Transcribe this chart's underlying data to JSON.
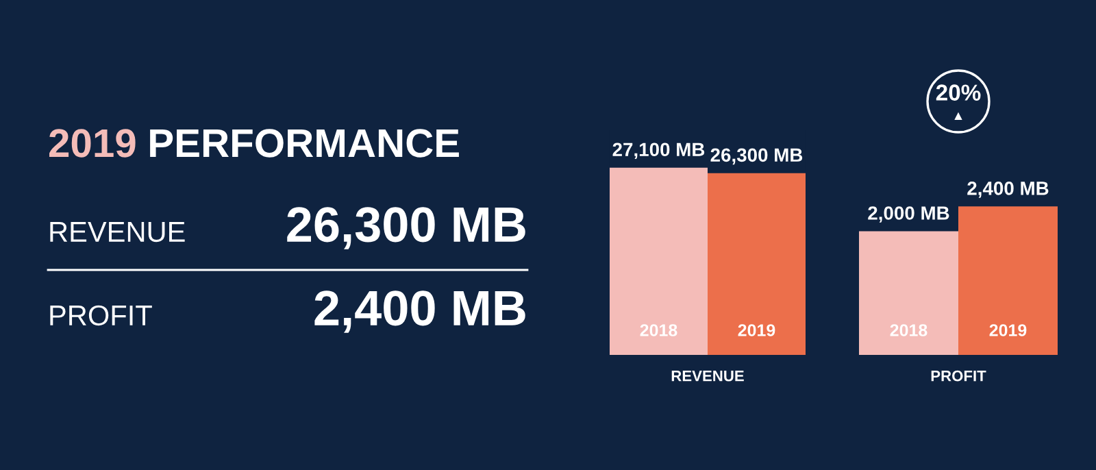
{
  "chart_data": [
    {
      "type": "other",
      "title": "2019 PERFORMANCE",
      "annotations": [
        "REVENUE",
        "26,300 MB",
        "PROFIT",
        "2,400 MB"
      ]
    },
    {
      "type": "bar",
      "xlabel": "REVENUE",
      "categories": [
        "2018",
        "2019"
      ],
      "values": [
        27100,
        26300
      ],
      "colors": [
        "#f4bcb8",
        "#ec6f4b"
      ],
      "value_labels": [
        "27,100 MB",
        "26,300 MB"
      ]
    },
    {
      "type": "bar",
      "xlabel": "PROFIT",
      "categories": [
        "2018",
        "2019"
      ],
      "values": [
        2000,
        2400
      ],
      "colors": [
        "#f4bcb8",
        "#ec6f4b"
      ],
      "value_labels": [
        "2,000 MB",
        "2,400 MB"
      ],
      "annotations": [
        "20%",
        "▲"
      ]
    }
  ]
}
